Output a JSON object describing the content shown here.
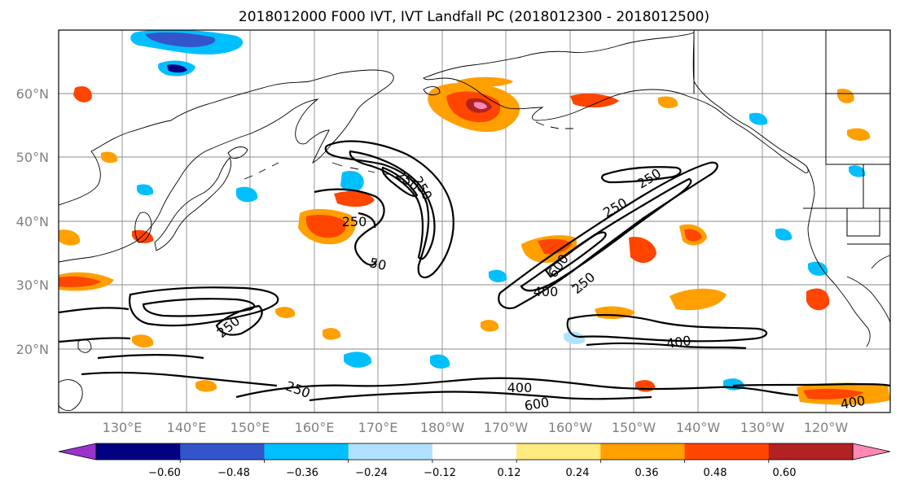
{
  "title": "2018012000 F000 IVT, IVT Landfall PC (2018012300 - 2018012500)",
  "latitude_labels": [
    "60°N",
    "50°N",
    "40°N",
    "30°N",
    "20°N"
  ],
  "longitude_labels": [
    "130°E",
    "140°E",
    "150°E",
    "160°E",
    "170°E",
    "180°W",
    "170°W",
    "160°W",
    "150°W",
    "140°W",
    "130°W",
    "120°W"
  ],
  "colorbar": {
    "tick_labels": [
      "−0.60",
      "−0.48",
      "−0.36",
      "−0.24",
      "−0.12",
      "0.12",
      "0.24",
      "0.36",
      "0.48",
      "0.60"
    ],
    "colors": [
      "#9933cc",
      "#000080",
      "#3355cc",
      "#00bfff",
      "#b0e2ff",
      "#ffffff",
      "#ffeb80",
      "#ff9f00",
      "#ff4500",
      "#b22222",
      "#ff88b4"
    ]
  },
  "contour_labels": [
    "250",
    "250",
    "250",
    "50",
    "250",
    "250",
    "250",
    "600",
    "400",
    "400",
    "400",
    "600",
    "400",
    "250",
    "250"
  ]
}
